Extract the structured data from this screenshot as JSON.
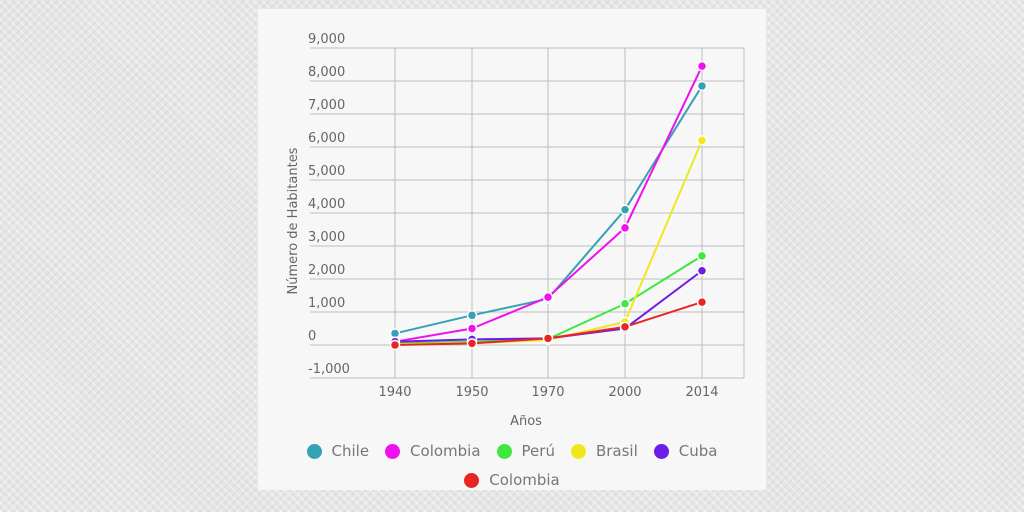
{
  "chart_data": {
    "type": "line",
    "title": "",
    "xlabel": "Años",
    "ylabel": "Número de Habitantes",
    "categories": [
      "1940",
      "1950",
      "1970",
      "2000",
      "2014"
    ],
    "ylim": [
      -1000,
      9000
    ],
    "yticks": [
      -1000,
      0,
      1000,
      2000,
      3000,
      4000,
      5000,
      6000,
      7000,
      8000,
      9000
    ],
    "ytick_labels": [
      "-1,000",
      "0",
      "1,000",
      "2,000",
      "3,000",
      "4,000",
      "5,000",
      "6,000",
      "7,000",
      "8,000",
      "9,000"
    ],
    "grid": true,
    "legend_position": "bottom",
    "series": [
      {
        "name": "Chile",
        "color": "#35a2b4",
        "values": [
          350,
          900,
          1400,
          4100,
          7850
        ]
      },
      {
        "name": "Colombia",
        "color": "#ee10ee",
        "values": [
          100,
          500,
          1450,
          3550,
          8450
        ]
      },
      {
        "name": "Perú",
        "color": "#3ee83e",
        "values": [
          50,
          100,
          180,
          1250,
          2700
        ]
      },
      {
        "name": "Brasil",
        "color": "#f0e81c",
        "values": [
          20,
          60,
          150,
          700,
          6200
        ]
      },
      {
        "name": "Cuba",
        "color": "#6a1ee6",
        "values": [
          100,
          170,
          200,
          500,
          2250
        ]
      },
      {
        "name": "Colombia",
        "color": "#e82424",
        "values": [
          0,
          50,
          200,
          550,
          1300
        ]
      }
    ]
  }
}
